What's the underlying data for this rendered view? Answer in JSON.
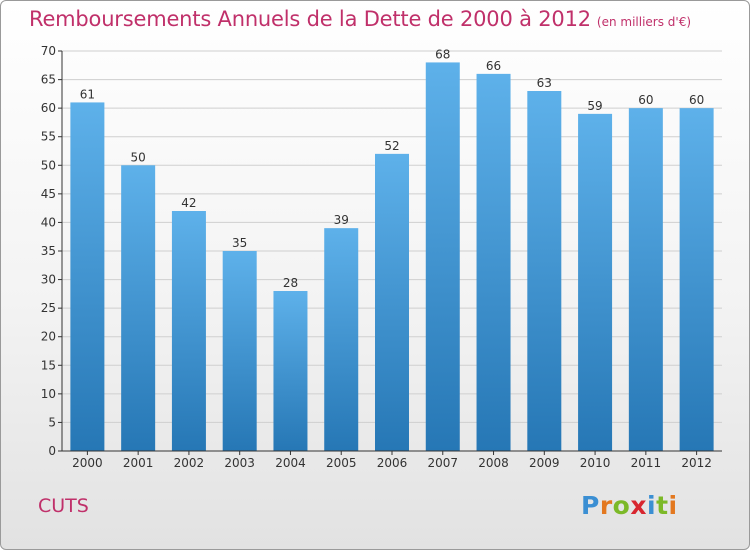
{
  "header": {
    "title": "Remboursements Annuels de la Dette de 2000 à 2012",
    "unit": "(en milliers d'€)"
  },
  "footer": {
    "commune": "CUTS",
    "logo_letters": [
      "P",
      "r",
      "o",
      "x",
      "i",
      "t",
      "i"
    ],
    "logo_colors": [
      "#3b8fd3",
      "#e3781f",
      "#7cb928",
      "#d8262f",
      "#3b8fd3",
      "#7cb928",
      "#e3781f"
    ]
  },
  "colors": {
    "title": "#c0306a",
    "bar_top": "#5eb1ea",
    "bar_bottom": "#2677b5",
    "grid": "#cfcfcf",
    "axis": "#333333"
  },
  "chart_data": {
    "type": "bar",
    "categories": [
      "2000",
      "2001",
      "2002",
      "2003",
      "2004",
      "2005",
      "2006",
      "2007",
      "2008",
      "2009",
      "2010",
      "2011",
      "2012"
    ],
    "values": [
      61,
      50,
      42,
      35,
      28,
      39,
      52,
      68,
      66,
      63,
      59,
      60,
      60
    ],
    "data_labels": [
      "61",
      "50",
      "42",
      "35",
      "28",
      "39",
      "52",
      "68",
      "66",
      "63",
      "59",
      "60",
      "60"
    ],
    "title": "Remboursements Annuels de la Dette de 2000 à 2012",
    "xlabel": "",
    "ylabel": "",
    "ylim": [
      0,
      70
    ],
    "yticks": [
      "0",
      "5",
      "10",
      "15",
      "20",
      "25",
      "30",
      "35",
      "40",
      "45",
      "50",
      "55",
      "60",
      "65",
      "70"
    ],
    "grid": true,
    "legend": "none"
  }
}
